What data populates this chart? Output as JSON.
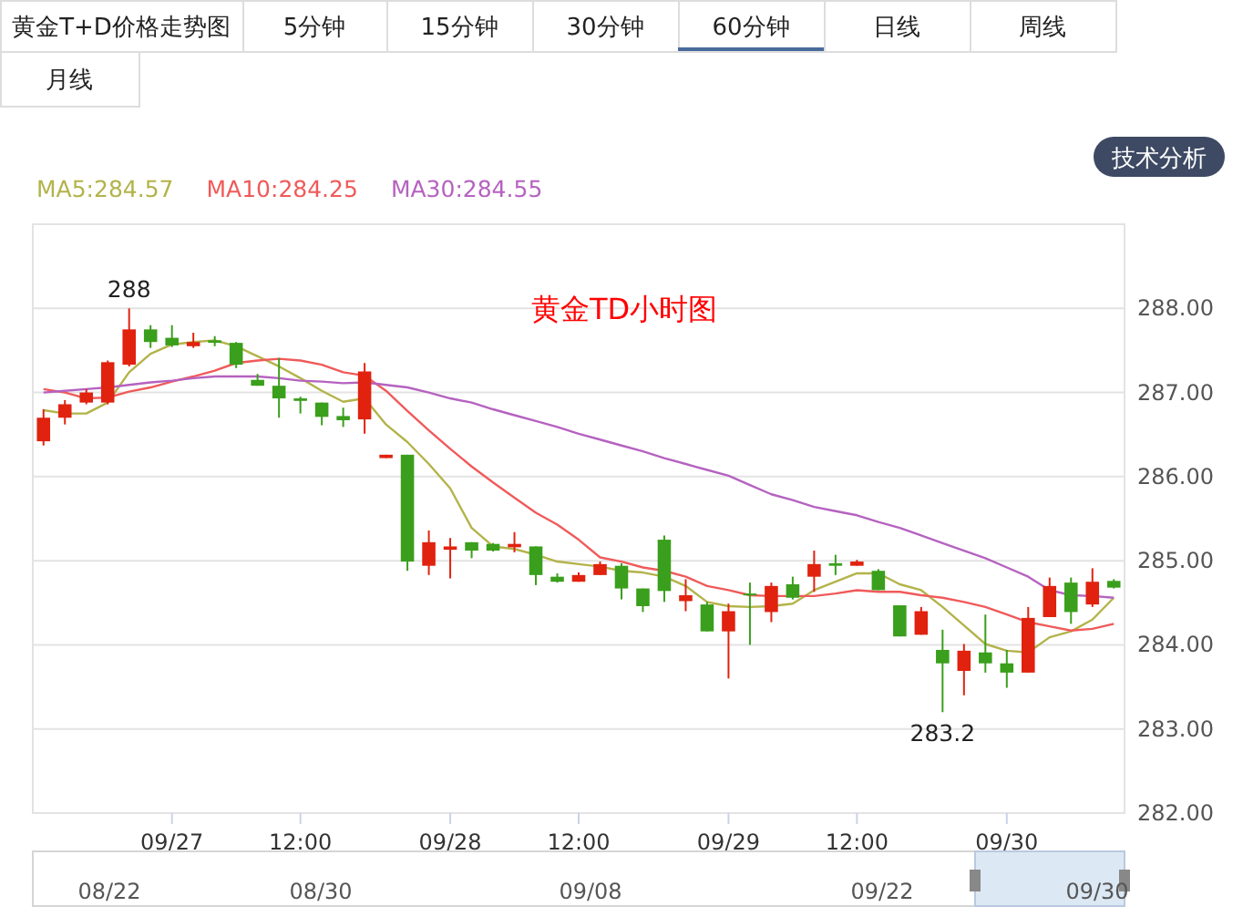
{
  "chart_data": {
    "type": "candlestick",
    "title": "黄金TD小时图",
    "categories": [
      null,
      null,
      null,
      null,
      null,
      null,
      "09/27",
      null,
      null,
      null,
      null,
      null,
      "12:00",
      null,
      null,
      null,
      null,
      null,
      null,
      "09/28",
      null,
      null,
      null,
      null,
      null,
      "12:00",
      null,
      null,
      null,
      null,
      null,
      null,
      "09/29",
      null,
      null,
      null,
      null,
      null,
      "12:00",
      null,
      null,
      null,
      null,
      null,
      null,
      "09/30",
      null,
      null,
      null,
      null,
      null
    ],
    "ohlc": [
      [
        286.42,
        286.8,
        286.37,
        286.7
      ],
      [
        286.7,
        286.91,
        286.62,
        286.86
      ],
      [
        286.88,
        287.04,
        286.86,
        287.0
      ],
      [
        286.88,
        287.38,
        286.86,
        287.36
      ],
      [
        287.33,
        288.0,
        287.31,
        287.75
      ],
      [
        287.75,
        287.8,
        287.53,
        287.6
      ],
      [
        287.65,
        287.8,
        287.54,
        287.56
      ],
      [
        287.55,
        287.71,
        287.53,
        287.6
      ],
      [
        287.62,
        287.67,
        287.55,
        287.59
      ],
      [
        287.59,
        287.6,
        287.29,
        287.33
      ],
      [
        287.15,
        287.22,
        287.08,
        287.08
      ],
      [
        287.08,
        287.41,
        286.7,
        286.93
      ],
      [
        286.93,
        286.95,
        286.75,
        286.9
      ],
      [
        286.88,
        286.88,
        286.61,
        286.71
      ],
      [
        286.72,
        286.82,
        286.59,
        286.67
      ],
      [
        286.68,
        287.35,
        286.51,
        287.25
      ],
      [
        286.22,
        286.26,
        286.22,
        286.26
      ],
      [
        286.26,
        286.26,
        284.88,
        284.99
      ],
      [
        284.94,
        285.36,
        284.83,
        285.22
      ],
      [
        285.13,
        285.27,
        284.79,
        285.17
      ],
      [
        285.22,
        285.22,
        285.03,
        285.12
      ],
      [
        285.2,
        285.21,
        285.11,
        285.12
      ],
      [
        285.16,
        285.34,
        285.1,
        285.2
      ],
      [
        285.17,
        285.17,
        284.71,
        284.83
      ],
      [
        284.81,
        284.85,
        284.74,
        284.75
      ],
      [
        284.75,
        284.86,
        284.75,
        284.83
      ],
      [
        284.83,
        284.99,
        284.83,
        284.96
      ],
      [
        284.94,
        284.97,
        284.54,
        284.67
      ],
      [
        284.67,
        284.67,
        284.39,
        284.46
      ],
      [
        285.25,
        285.3,
        284.51,
        284.64
      ],
      [
        284.52,
        284.78,
        284.4,
        284.59
      ],
      [
        284.48,
        284.51,
        284.16,
        284.16
      ],
      [
        284.16,
        284.49,
        283.6,
        284.4
      ],
      [
        284.61,
        284.74,
        284.0,
        284.59
      ],
      [
        284.39,
        284.74,
        284.27,
        284.7
      ],
      [
        284.72,
        284.81,
        284.54,
        284.56
      ],
      [
        284.81,
        285.12,
        284.63,
        284.96
      ],
      [
        284.97,
        285.07,
        284.83,
        284.94
      ],
      [
        284.94,
        285.01,
        284.94,
        284.99
      ],
      [
        284.88,
        284.9,
        284.65,
        284.65
      ],
      [
        284.47,
        284.47,
        284.1,
        284.1
      ],
      [
        284.12,
        284.45,
        284.12,
        284.4
      ],
      [
        283.94,
        284.18,
        283.2,
        283.78
      ],
      [
        283.69,
        284.01,
        283.4,
        283.93
      ],
      [
        283.91,
        284.36,
        283.67,
        283.78
      ],
      [
        283.78,
        283.94,
        283.49,
        283.67
      ],
      [
        283.67,
        284.45,
        283.67,
        284.32
      ],
      [
        284.33,
        284.8,
        284.33,
        284.7
      ],
      [
        284.74,
        284.8,
        284.25,
        284.39
      ],
      [
        284.48,
        284.91,
        284.45,
        284.75
      ],
      [
        284.76,
        284.78,
        284.67,
        284.68
      ]
    ],
    "colors": [
      "#e0220f",
      "#e0220f",
      "#e0220f",
      "#e0220f",
      "#e0220f",
      "#3a9f1c",
      "#3a9f1c",
      "#e0220f",
      "#3a9f1c",
      "#3a9f1c",
      "#3a9f1c",
      "#3a9f1c",
      "#3a9f1c",
      "#3a9f1c",
      "#3a9f1c",
      "#e0220f",
      "#e0220f",
      "#3a9f1c",
      "#e0220f",
      "#e0220f",
      "#3a9f1c",
      "#3a9f1c",
      "#e0220f",
      "#3a9f1c",
      "#3a9f1c",
      "#e0220f",
      "#e0220f",
      "#3a9f1c",
      "#3a9f1c",
      "#3a9f1c",
      "#e0220f",
      "#3a9f1c",
      "#e0220f",
      "#3a9f1c",
      "#e0220f",
      "#3a9f1c",
      "#e0220f",
      "#3a9f1c",
      "#e0220f",
      "#3a9f1c",
      "#3a9f1c",
      "#e0220f",
      "#3a9f1c",
      "#e0220f",
      "#3a9f1c",
      "#3a9f1c",
      "#e0220f",
      "#e0220f",
      "#3a9f1c",
      "#e0220f",
      "#3a9f1c"
    ],
    "series": [
      {
        "name": "MA5:284.57",
        "type": "line",
        "color": "#b3b34a",
        "values": [
          286.79,
          286.75,
          286.75,
          286.88,
          287.24,
          287.46,
          287.57,
          287.6,
          287.62,
          287.55,
          287.43,
          287.31,
          287.17,
          287.02,
          286.89,
          286.93,
          286.62,
          286.41,
          286.15,
          285.86,
          285.39,
          285.17,
          285.14,
          285.07,
          284.99,
          284.96,
          284.93,
          284.88,
          284.86,
          284.81,
          284.7,
          284.51,
          284.46,
          284.45,
          284.46,
          284.49,
          284.65,
          284.75,
          284.85,
          284.85,
          284.72,
          284.65,
          284.45,
          284.23,
          284.01,
          283.93,
          283.91,
          284.09,
          284.16,
          284.3,
          284.56
        ]
      },
      {
        "name": "MA10:284.25",
        "type": "line",
        "color": "#f05a5a",
        "values": [
          287.04,
          287.0,
          286.93,
          286.94,
          287.01,
          287.06,
          287.13,
          287.19,
          287.26,
          287.35,
          287.38,
          287.4,
          287.38,
          287.33,
          287.24,
          287.2,
          287.02,
          286.78,
          286.55,
          286.33,
          286.12,
          285.93,
          285.75,
          285.57,
          285.43,
          285.25,
          285.04,
          284.99,
          284.92,
          284.88,
          284.81,
          284.7,
          284.65,
          284.59,
          284.58,
          284.58,
          284.58,
          284.61,
          284.65,
          284.63,
          284.63,
          284.59,
          284.56,
          284.51,
          284.45,
          284.36,
          284.27,
          284.22,
          284.17,
          284.19,
          284.25
        ]
      },
      {
        "name": "MA30:284.55",
        "type": "line",
        "color": "#b562c0",
        "values": [
          287.0,
          287.02,
          287.04,
          287.06,
          287.09,
          287.12,
          287.14,
          287.17,
          287.19,
          287.19,
          287.19,
          287.17,
          287.14,
          287.13,
          287.11,
          287.12,
          287.09,
          287.06,
          287.0,
          286.93,
          286.88,
          286.8,
          286.73,
          286.66,
          286.59,
          286.51,
          286.44,
          286.37,
          286.3,
          286.22,
          286.15,
          286.08,
          286.01,
          285.9,
          285.79,
          285.72,
          285.64,
          285.59,
          285.54,
          285.46,
          285.39,
          285.3,
          285.21,
          285.12,
          285.03,
          284.92,
          284.81,
          284.65,
          284.59,
          284.58,
          284.56
        ]
      }
    ],
    "ylim": [
      282,
      289
    ],
    "yticks": [
      {
        "value": 282,
        "label": "282.00"
      },
      {
        "value": 283,
        "label": "283.00"
      },
      {
        "value": 284,
        "label": "284.00"
      },
      {
        "value": 285,
        "label": "285.00"
      },
      {
        "value": 286,
        "label": "286.00"
      },
      {
        "value": 287,
        "label": "287.00"
      },
      {
        "value": 288,
        "label": "288.00"
      }
    ],
    "grid": "y",
    "legend": "top left",
    "annotations": [
      "黄金T+D价格走势图",
      "5分钟",
      "15分钟",
      "30分钟",
      "60分钟",
      "日线",
      "周线",
      "月线",
      "技术分析",
      "08/22",
      "08/30",
      "09/08",
      "09/22",
      "09/30",
      {
        "text": "288",
        "y": 288
      },
      {
        "text": "283.2",
        "y": 283.2
      }
    ]
  }
}
